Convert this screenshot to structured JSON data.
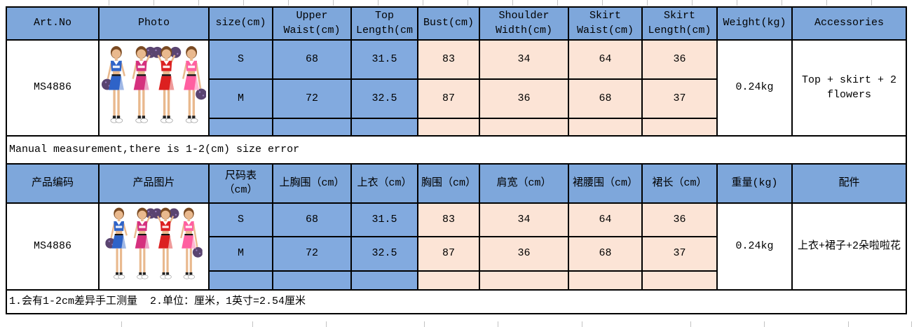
{
  "colors": {
    "header_blue": "#7EA7DB",
    "data_blue": "#82AADF",
    "data_peach": "#FCE4D6",
    "border_black": "#000000"
  },
  "photo": {
    "label": "four cheerleaders in crop tops and skirts with pom-poms",
    "outfit_colors": [
      "#2E63C8",
      "#D5307E",
      "#DC2020",
      "#FF5FA0"
    ],
    "pompom_color": "#5A4470",
    "pompom_sparkle": "#9B7FC0",
    "skin_color": "#E9B98E",
    "hair_color": "#7A4A22"
  },
  "en": {
    "headers": {
      "art_no": "Art.No",
      "photo": "Photo",
      "size": "size(cm)",
      "upper_waist": "Upper Waist(cm)",
      "top_length": "Top Length(cm",
      "bust": "Bust(cm)",
      "shoulder_width": "Shoulder Width(cm)",
      "skirt_waist": "Skirt Waist(cm)",
      "skirt_length": "Skirt Length(cm)",
      "weight": "Weight(kg)",
      "accessories": "Accessories"
    },
    "art_no": "MS4886",
    "rows": [
      {
        "size": "S",
        "upper_waist": "68",
        "top_length": "31.5",
        "bust": "83",
        "shoulder_width": "34",
        "skirt_waist": "64",
        "skirt_length": "36"
      },
      {
        "size": "M",
        "upper_waist": "72",
        "top_length": "32.5",
        "bust": "87",
        "shoulder_width": "36",
        "skirt_waist": "68",
        "skirt_length": "37"
      }
    ],
    "weight": "0.24kg",
    "accessories": "Top + skirt + 2 flowers",
    "note": "Manual measurement,there is 1-2(cm) size error"
  },
  "cn": {
    "headers": {
      "art_no": "产品编码",
      "photo": "产品图片",
      "size": "尺码表（cm）",
      "upper_waist": "上胸围（cm）",
      "top_length": "上衣（cm）",
      "bust": "胸围（cm）",
      "shoulder_width": "肩宽（cm）",
      "skirt_waist": "裙腰围（cm）",
      "skirt_length": "裙长（cm）",
      "weight": "重量(kg)",
      "accessories": "配件"
    },
    "art_no": "MS4886",
    "rows": [
      {
        "size": "S",
        "upper_waist": "68",
        "top_length": "31.5",
        "bust": "83",
        "shoulder_width": "34",
        "skirt_waist": "64",
        "skirt_length": "36"
      },
      {
        "size": "M",
        "upper_waist": "72",
        "top_length": "32.5",
        "bust": "87",
        "shoulder_width": "36",
        "skirt_waist": "68",
        "skirt_length": "37"
      }
    ],
    "weight": "0.24kg",
    "accessories": "上衣+裙子+2朵啦啦花",
    "note": "1.会有1-2cm差异手工测量  2.单位：厘米，1英寸=2.54厘米"
  }
}
